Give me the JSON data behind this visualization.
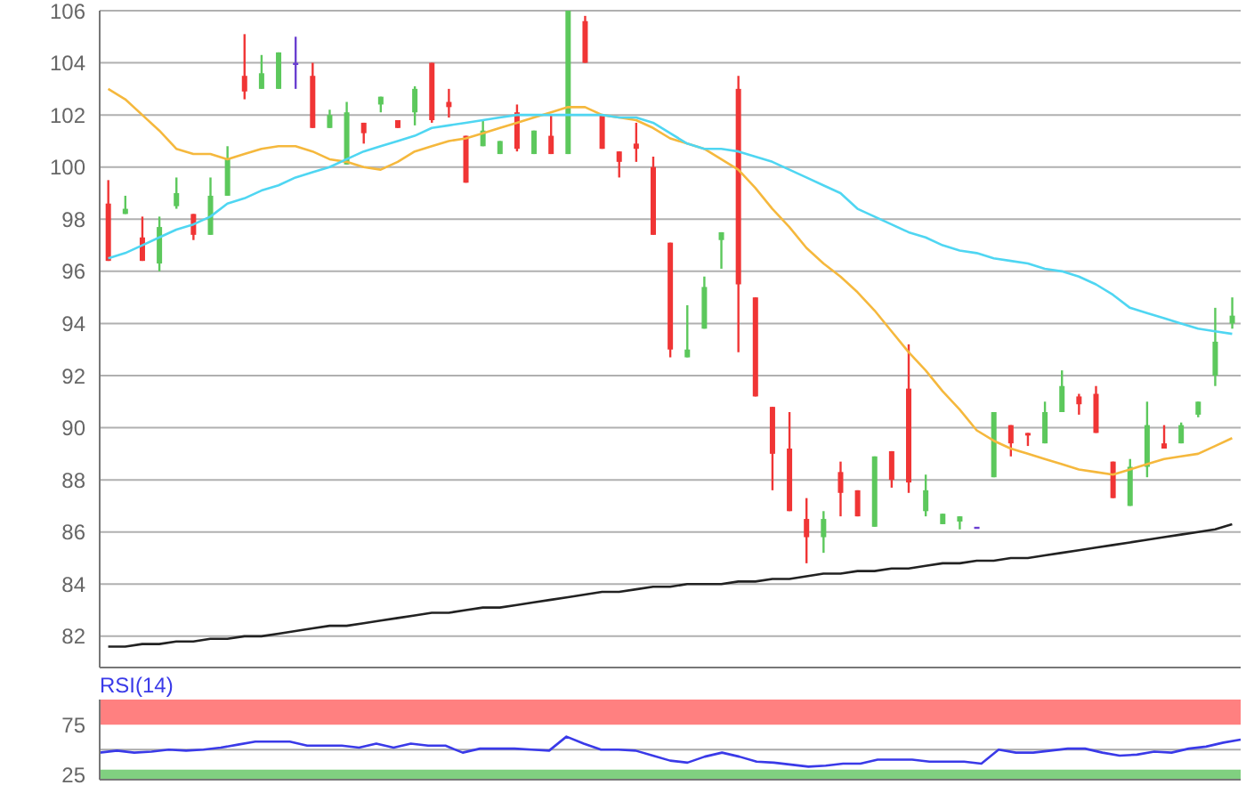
{
  "chart_data": [
    {
      "type": "candlestick",
      "categories": [
        null,
        null,
        null,
        null,
        null,
        null,
        null,
        null,
        null,
        null,
        null,
        null,
        null,
        null,
        null,
        null,
        null,
        null,
        null,
        null,
        null,
        null,
        null,
        null,
        null,
        null,
        null,
        null,
        null,
        null,
        null,
        null,
        null,
        null,
        null,
        null,
        null,
        null,
        null,
        null,
        null,
        null,
        null,
        null,
        null,
        null,
        null,
        null,
        null,
        null,
        null,
        null,
        null,
        null,
        null,
        null,
        null,
        null,
        null,
        null,
        null,
        null,
        null,
        null,
        null,
        null,
        null
      ],
      "ylim": [
        80.8,
        106
      ],
      "yticks": [
        82,
        84,
        86,
        88,
        90,
        92,
        94,
        96,
        98,
        100,
        102,
        104,
        106
      ],
      "grid": "y",
      "tick_labels": "y",
      "series": [
        {
          "type": "line",
          "color": "#f5b83d",
          "values": [
            103.0,
            102.6,
            102.0,
            101.4,
            100.7,
            100.5,
            100.5,
            100.3,
            100.5,
            100.7,
            100.8,
            100.8,
            100.6,
            100.3,
            100.2,
            100.0,
            99.9,
            100.2,
            100.6,
            100.8,
            101.0,
            101.1,
            101.3,
            101.5,
            101.7,
            101.9,
            102.1,
            102.3,
            102.3,
            102.0,
            101.9,
            101.8,
            101.5,
            101.1,
            100.9,
            100.7,
            100.3,
            99.9,
            99.2,
            98.4,
            97.7,
            96.9,
            96.3,
            95.8,
            95.2,
            94.5,
            93.7,
            92.9,
            92.2,
            91.4,
            90.7,
            89.9,
            89.5,
            89.2,
            89.0,
            88.8,
            88.6,
            88.4,
            88.3,
            88.2,
            88.4,
            88.6,
            88.8,
            88.9,
            89.0,
            89.3,
            89.6
          ]
        },
        {
          "type": "line",
          "color": "#4fd6f2",
          "values": [
            96.5,
            96.7,
            97.0,
            97.3,
            97.6,
            97.8,
            98.1,
            98.6,
            98.8,
            99.1,
            99.3,
            99.6,
            99.8,
            100.0,
            100.3,
            100.6,
            100.8,
            101.0,
            101.2,
            101.5,
            101.6,
            101.7,
            101.8,
            101.9,
            102.0,
            102.0,
            102.0,
            102.0,
            102.0,
            102.0,
            101.9,
            101.9,
            101.7,
            101.3,
            100.9,
            100.7,
            100.7,
            100.6,
            100.4,
            100.2,
            99.9,
            99.6,
            99.3,
            99.0,
            98.4,
            98.1,
            97.8,
            97.5,
            97.3,
            97.0,
            96.8,
            96.7,
            96.5,
            96.4,
            96.3,
            96.1,
            96.0,
            95.8,
            95.5,
            95.1,
            94.6,
            94.4,
            94.2,
            94.0,
            93.8,
            93.7,
            93.6
          ]
        },
        {
          "type": "line",
          "color": "#222222",
          "values": [
            81.6,
            81.6,
            81.7,
            81.7,
            81.8,
            81.8,
            81.9,
            81.9,
            82.0,
            82.0,
            82.1,
            82.2,
            82.3,
            82.4,
            82.4,
            82.5,
            82.6,
            82.7,
            82.8,
            82.9,
            82.9,
            83.0,
            83.1,
            83.1,
            83.2,
            83.3,
            83.4,
            83.5,
            83.6,
            83.7,
            83.7,
            83.8,
            83.9,
            83.9,
            84.0,
            84.0,
            84.0,
            84.1,
            84.1,
            84.2,
            84.2,
            84.3,
            84.4,
            84.4,
            84.5,
            84.5,
            84.6,
            84.6,
            84.7,
            84.8,
            84.8,
            84.9,
            84.9,
            85.0,
            85.0,
            85.1,
            85.2,
            85.3,
            85.4,
            85.5,
            85.6,
            85.7,
            85.8,
            85.9,
            86.0,
            86.1,
            86.3
          ]
        },
        {
          "type": "candlestick",
          "ohlc": [
            [
              98.6,
              99.5,
              96.4,
              96.4
            ],
            [
              98.2,
              98.9,
              98.2,
              98.4
            ],
            [
              97.3,
              98.1,
              96.4,
              96.4
            ],
            [
              96.3,
              98.1,
              96.0,
              97.7
            ],
            [
              98.5,
              99.6,
              98.4,
              99.0
            ],
            [
              98.2,
              98.2,
              97.2,
              97.4
            ],
            [
              97.4,
              99.6,
              97.4,
              98.9
            ],
            [
              98.9,
              100.8,
              98.9,
              100.3
            ],
            [
              103.5,
              105.1,
              102.6,
              102.9
            ],
            [
              103.0,
              104.3,
              103.0,
              103.6
            ],
            [
              103.0,
              104.4,
              103.0,
              104.4
            ],
            [
              104.0,
              105.0,
              103.0,
              104.0
            ],
            [
              103.5,
              104.0,
              101.5,
              101.5
            ],
            [
              101.5,
              102.2,
              101.5,
              102.0
            ],
            [
              100.1,
              102.5,
              100.1,
              102.1
            ],
            [
              101.7,
              101.7,
              100.9,
              101.3
            ],
            [
              102.4,
              102.7,
              102.1,
              102.7
            ],
            [
              101.8,
              101.8,
              101.5,
              101.5
            ],
            [
              102.1,
              103.1,
              101.6,
              103.0
            ],
            [
              104.0,
              104.0,
              101.7,
              101.8
            ],
            [
              102.5,
              103.0,
              101.9,
              102.3
            ],
            [
              101.2,
              101.2,
              99.4,
              99.4
            ],
            [
              100.8,
              101.8,
              100.8,
              101.4
            ],
            [
              100.5,
              101.0,
              100.5,
              101.0
            ],
            [
              102.1,
              102.4,
              100.6,
              100.7
            ],
            [
              100.5,
              101.4,
              100.5,
              101.4
            ],
            [
              101.2,
              102.0,
              100.5,
              100.5
            ],
            [
              100.5,
              106.0,
              100.5,
              106.0
            ],
            [
              105.6,
              105.8,
              104.0,
              104.0
            ],
            [
              102.0,
              102.0,
              100.7,
              100.7
            ],
            [
              100.6,
              100.6,
              99.6,
              100.2
            ],
            [
              100.9,
              101.7,
              100.2,
              100.7
            ],
            [
              100.0,
              100.4,
              97.4,
              97.4
            ],
            [
              97.1,
              97.1,
              92.7,
              93.0
            ],
            [
              92.7,
              94.7,
              92.7,
              93.0
            ],
            [
              93.8,
              95.8,
              93.8,
              95.4
            ],
            [
              97.2,
              97.5,
              96.1,
              97.5
            ],
            [
              103.0,
              103.5,
              92.9,
              95.5
            ],
            [
              95.0,
              95.0,
              91.2,
              91.2
            ],
            [
              90.8,
              90.8,
              87.6,
              89.0
            ],
            [
              89.2,
              90.6,
              86.8,
              86.8
            ],
            [
              86.5,
              87.3,
              84.8,
              85.8
            ],
            [
              85.8,
              86.8,
              85.2,
              86.5
            ],
            [
              88.3,
              88.7,
              86.6,
              87.5
            ],
            [
              87.6,
              87.6,
              86.6,
              86.6
            ],
            [
              86.2,
              88.9,
              86.2,
              88.9
            ],
            [
              89.1,
              89.1,
              87.7,
              88.0
            ],
            [
              91.5,
              93.2,
              87.5,
              87.9
            ],
            [
              86.8,
              88.2,
              86.6,
              87.6
            ],
            [
              86.3,
              86.7,
              86.3,
              86.7
            ],
            [
              86.4,
              86.6,
              86.1,
              86.6
            ],
            [
              86.2,
              86.2,
              86.2,
              86.2
            ],
            [
              88.1,
              90.6,
              88.1,
              90.6
            ],
            [
              90.1,
              90.1,
              88.9,
              89.4
            ],
            [
              89.8,
              89.8,
              89.3,
              89.7
            ],
            [
              89.4,
              91.0,
              89.4,
              90.6
            ],
            [
              90.6,
              92.2,
              90.6,
              91.6
            ],
            [
              91.2,
              91.3,
              90.5,
              90.9
            ],
            [
              91.3,
              91.6,
              89.8,
              89.8
            ],
            [
              88.7,
              88.7,
              87.3,
              87.3
            ],
            [
              87.0,
              88.8,
              87.0,
              88.5
            ],
            [
              88.5,
              91.0,
              88.1,
              90.1
            ],
            [
              89.4,
              90.1,
              89.2,
              89.2
            ],
            [
              89.4,
              90.2,
              89.4,
              90.1
            ],
            [
              90.5,
              91.0,
              90.4,
              91.0
            ],
            [
              92.0,
              94.6,
              91.6,
              93.3
            ],
            [
              94.0,
              95.0,
              93.8,
              94.3
            ]
          ],
          "colors": [
            "#f03535",
            "#5cc85c",
            "#f03535",
            "#5cc85c",
            "#5cc85c",
            "#f03535",
            "#5cc85c",
            "#5cc85c",
            "#f03535",
            "#5cc85c",
            "#5cc85c",
            "#6a3fd0",
            "#f03535",
            "#5cc85c",
            "#5cc85c",
            "#f03535",
            "#5cc85c",
            "#f03535",
            "#5cc85c",
            "#f03535",
            "#f03535",
            "#f03535",
            "#5cc85c",
            "#5cc85c",
            "#f03535",
            "#5cc85c",
            "#f03535",
            "#5cc85c",
            "#f03535",
            "#f03535",
            "#f03535",
            "#f03535",
            "#f03535",
            "#f03535",
            "#5cc85c",
            "#5cc85c",
            "#5cc85c",
            "#f03535",
            "#f03535",
            "#f03535",
            "#f03535",
            "#f03535",
            "#5cc85c",
            "#f03535",
            "#f03535",
            "#5cc85c",
            "#f03535",
            "#f03535",
            "#5cc85c",
            "#5cc85c",
            "#5cc85c",
            "#6a3fd0",
            "#5cc85c",
            "#f03535",
            "#f03535",
            "#5cc85c",
            "#5cc85c",
            "#f03535",
            "#f03535",
            "#f03535",
            "#5cc85c",
            "#5cc85c",
            "#f03535",
            "#5cc85c",
            "#5cc85c",
            "#5cc85c",
            "#5cc85c"
          ]
        }
      ]
    },
    {
      "type": "line",
      "title": "RSI(14)",
      "categories": [
        null,
        null,
        null,
        null,
        null,
        null,
        null,
        null,
        null,
        null,
        null,
        null,
        null,
        null,
        null,
        null,
        null,
        null,
        null,
        null,
        null,
        null,
        null,
        null,
        null,
        null,
        null,
        null,
        null,
        null,
        null,
        null,
        null,
        null,
        null,
        null,
        null,
        null,
        null,
        null,
        null,
        null,
        null,
        null,
        null,
        null,
        null,
        null,
        null,
        null,
        null,
        null,
        null,
        null,
        null,
        null,
        null,
        null,
        null,
        null,
        null,
        null,
        null,
        null,
        null,
        null,
        null
      ],
      "ylim": [
        20,
        100
      ],
      "yticks": [
        25,
        75
      ],
      "tick_labels": "y",
      "bands": [
        {
          "axis": "y",
          "from": 75,
          "to": 100,
          "color": "#ff8080"
        },
        {
          "axis": "y",
          "from": 20,
          "to": 30,
          "color": "#80d080"
        }
      ],
      "ref_lines": [
        {
          "axis": "y",
          "value": 50,
          "color": "#aaaaaa"
        }
      ],
      "series": [
        {
          "color": "#3a3ae8",
          "values": [
            47,
            49,
            47,
            48,
            50,
            49,
            50,
            52,
            55,
            58,
            58,
            58,
            54,
            54,
            54,
            52,
            56,
            52,
            56,
            54,
            54,
            47,
            51,
            51,
            51,
            50,
            49,
            63,
            56,
            50,
            50,
            49,
            44,
            39,
            37,
            43,
            47,
            43,
            38,
            37,
            35,
            33,
            34,
            36,
            36,
            40,
            40,
            40,
            38,
            38,
            38,
            36,
            50,
            47,
            47,
            49,
            51,
            51,
            47,
            44,
            45,
            48,
            47,
            51,
            53,
            57,
            60
          ]
        }
      ]
    }
  ]
}
